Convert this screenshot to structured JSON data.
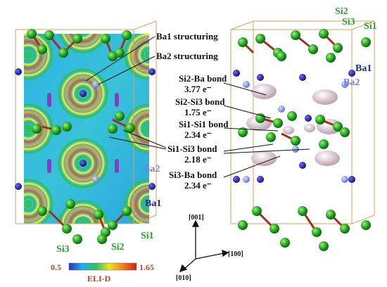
{
  "annotations": [
    {
      "label": "Ba1 structuring"
    },
    {
      "label": "Ba2 structuring"
    },
    {
      "label": "Si2-Ba bond",
      "value": "3.77 e⁻"
    },
    {
      "label": "Si2-Si3 bond",
      "value": "1.75 e⁻"
    },
    {
      "label": "Si1-Si1 bond",
      "value": "2.34 e⁻"
    },
    {
      "label": "Si1-Si3 bond",
      "value": "2.18 e⁻"
    },
    {
      "label": "Si3-Ba bond",
      "value": "2.34 e⁻"
    }
  ],
  "left_panel": {
    "atom_labels": [
      "Ba2",
      "Ba1",
      "Si1",
      "Si3",
      "Si2"
    ]
  },
  "right_panel": {
    "atom_labels": [
      "Si2",
      "Si3",
      "Si1",
      "Ba1",
      "Ba2"
    ]
  },
  "axes": {
    "labels": [
      "[001]",
      "[100]",
      "[010]"
    ]
  },
  "colorbar": {
    "min": "0.5",
    "max": "1.65",
    "title": "ELI-D"
  }
}
